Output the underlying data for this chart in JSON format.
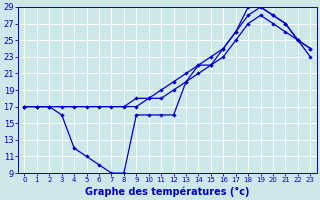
{
  "xlabel": "Graphe des températures (°c)",
  "bg_color": "#cce8e8",
  "grid_color": "#ffffff",
  "line_color": "#0000cc",
  "xlim": [
    -0.5,
    23.5
  ],
  "ylim": [
    9,
    29
  ],
  "xticks": [
    0,
    1,
    2,
    3,
    4,
    5,
    6,
    7,
    8,
    9,
    10,
    11,
    12,
    13,
    14,
    15,
    16,
    17,
    18,
    19,
    20,
    21,
    22,
    23
  ],
  "yticks": [
    9,
    11,
    13,
    15,
    17,
    19,
    21,
    23,
    25,
    27,
    29
  ],
  "curve1_x": [
    0,
    1,
    2,
    3,
    4,
    5,
    6,
    7,
    8,
    9,
    10,
    11,
    12,
    13,
    14,
    15,
    16,
    17,
    18,
    19,
    20,
    21,
    22,
    23
  ],
  "curve1_y": [
    17,
    17,
    17,
    16,
    12,
    11,
    10,
    9,
    9,
    16,
    16,
    16,
    16,
    20,
    22,
    22,
    24,
    26,
    29,
    29,
    28,
    27,
    25,
    24
  ],
  "curve2_x": [
    0,
    1,
    2,
    3,
    4,
    5,
    6,
    7,
    8,
    9,
    10,
    11,
    12,
    13,
    14,
    15,
    16,
    17,
    18,
    19,
    20,
    21,
    22,
    23
  ],
  "curve2_y": [
    17,
    17,
    17,
    17,
    17,
    17,
    17,
    17,
    17,
    18,
    18,
    19,
    20,
    21,
    22,
    23,
    24,
    26,
    28,
    29,
    28,
    27,
    25,
    24
  ],
  "curve3_x": [
    0,
    2,
    9,
    10,
    11,
    12,
    13,
    14,
    15,
    16,
    17,
    18,
    19,
    20,
    21,
    22,
    23
  ],
  "curve3_y": [
    17,
    17,
    17,
    18,
    18,
    19,
    20,
    21,
    22,
    23,
    25,
    27,
    28,
    27,
    26,
    25,
    23
  ]
}
